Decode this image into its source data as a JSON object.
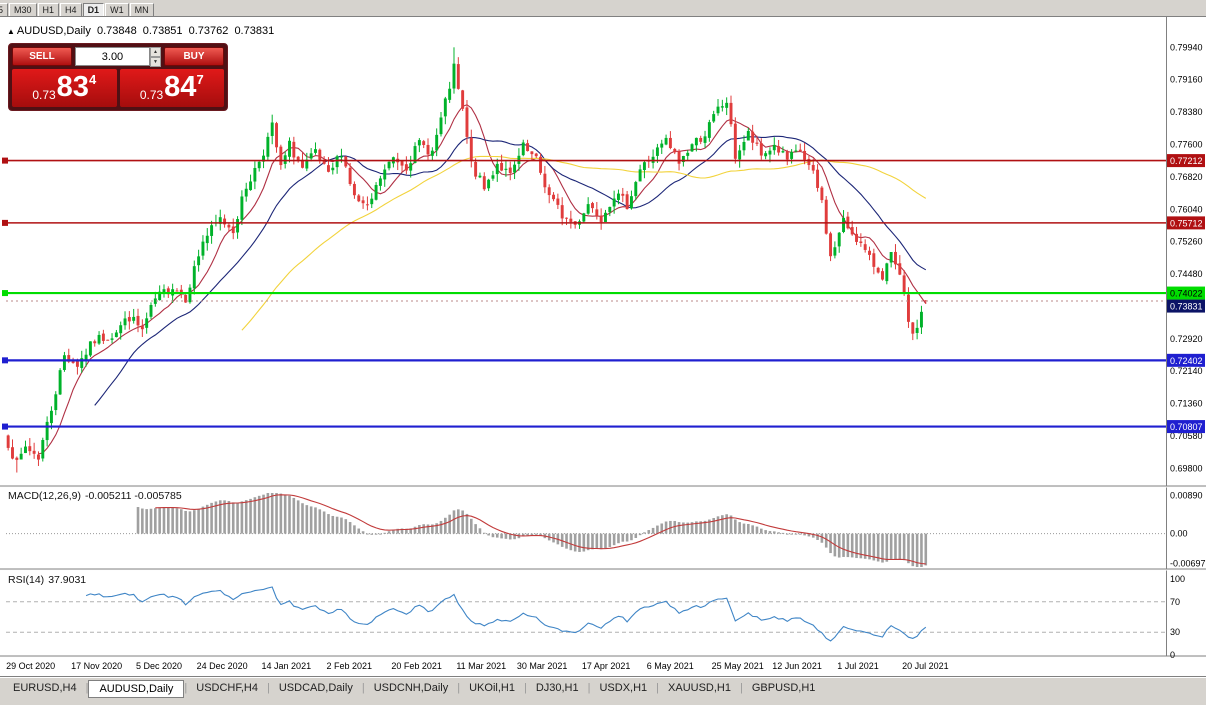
{
  "toolbar": {
    "timeframes": [
      "5",
      "M30",
      "H1",
      "H4",
      "D1",
      "W1",
      "MN"
    ],
    "active": "D1"
  },
  "chart_header": {
    "symbol": "AUDUSD,Daily",
    "open": "0.73848",
    "high": "0.73851",
    "low": "0.73762",
    "close": "0.73831"
  },
  "trade_panel": {
    "sell_label": "SELL",
    "buy_label": "BUY",
    "lot_size": "3.00",
    "sell_price_small": "0.73",
    "sell_price_big": "83",
    "sell_price_sup": "4",
    "buy_price_small": "0.73",
    "buy_price_big": "84",
    "buy_price_sup": "7"
  },
  "indicators": {
    "macd": {
      "label": "MACD(12,26,9)",
      "values": "-0.005211 -0.005785"
    },
    "rsi": {
      "label": "RSI(14)",
      "value": "37.9031"
    }
  },
  "tabs": {
    "items": [
      "EURUSD,H4",
      "AUDUSD,Daily",
      "USDCHF,H4",
      "USDCAD,Daily",
      "USDCNH,Daily",
      "UKOil,H1",
      "DJ30,H1",
      "USDX,H1",
      "XAUUSD,H1",
      "GBPUSD,H1"
    ],
    "active_index": 1
  },
  "chart_data": {
    "type": "candlestick",
    "symbol": "AUDUSD",
    "timeframe": "Daily",
    "bars": 213,
    "right_shift_slots": 55,
    "y_range": {
      "min": 0.694,
      "max": 0.8067
    },
    "y_tick_labels": [
      "0.79940",
      "0.79160",
      "0.78380",
      "0.77600",
      "0.76820",
      "0.76040",
      "0.75260",
      "0.74480",
      "0.73700",
      "0.72920",
      "0.72140",
      "0.71360",
      "0.70580",
      "0.69800"
    ],
    "date_labels": [
      "29 Oct 2020",
      "17 Nov 2020",
      "5 Dec 2020",
      "24 Dec 2020",
      "14 Jan 2021",
      "2 Feb 2021",
      "20 Feb 2021",
      "11 Mar 2021",
      "30 Mar 2021",
      "17 Apr 2021",
      "6 May 2021",
      "25 May 2021",
      "12 Jun 2021",
      "1 Jul 2021",
      "20 Jul 2021"
    ],
    "series_anchors": [
      [
        0,
        0.7042
      ],
      [
        2,
        0.6988
      ],
      [
        4,
        0.7032
      ],
      [
        7,
        0.7008
      ],
      [
        10,
        0.7125
      ],
      [
        13,
        0.7252
      ],
      [
        16,
        0.723
      ],
      [
        20,
        0.7288
      ],
      [
        24,
        0.7302
      ],
      [
        28,
        0.7345
      ],
      [
        31,
        0.7312
      ],
      [
        34,
        0.7386
      ],
      [
        38,
        0.742
      ],
      [
        41,
        0.7392
      ],
      [
        45,
        0.7528
      ],
      [
        49,
        0.758
      ],
      [
        52,
        0.7556
      ],
      [
        55,
        0.7658
      ],
      [
        57,
        0.77
      ],
      [
        59,
        0.7745
      ],
      [
        61,
        0.7802
      ],
      [
        63,
        0.7702
      ],
      [
        65,
        0.7758
      ],
      [
        68,
        0.77
      ],
      [
        71,
        0.774
      ],
      [
        74,
        0.7682
      ],
      [
        77,
        0.7744
      ],
      [
        80,
        0.7632
      ],
      [
        83,
        0.7602
      ],
      [
        86,
        0.768
      ],
      [
        89,
        0.7728
      ],
      [
        92,
        0.771
      ],
      [
        95,
        0.7762
      ],
      [
        98,
        0.7742
      ],
      [
        101,
        0.7858
      ],
      [
        103,
        0.7942
      ],
      [
        105,
        0.7838
      ],
      [
        107,
        0.7712
      ],
      [
        110,
        0.7652
      ],
      [
        113,
        0.7716
      ],
      [
        116,
        0.7682
      ],
      [
        119,
        0.7752
      ],
      [
        122,
        0.772
      ],
      [
        125,
        0.7636
      ],
      [
        128,
        0.759
      ],
      [
        131,
        0.7566
      ],
      [
        134,
        0.7618
      ],
      [
        137,
        0.7586
      ],
      [
        140,
        0.764
      ],
      [
        143,
        0.7616
      ],
      [
        146,
        0.77
      ],
      [
        149,
        0.7734
      ],
      [
        152,
        0.7768
      ],
      [
        155,
        0.7716
      ],
      [
        158,
        0.776
      ],
      [
        161,
        0.7786
      ],
      [
        164,
        0.7844
      ],
      [
        166,
        0.7864
      ],
      [
        168,
        0.7732
      ],
      [
        171,
        0.7784
      ],
      [
        174,
        0.7732
      ],
      [
        177,
        0.7758
      ],
      [
        180,
        0.7722
      ],
      [
        183,
        0.7744
      ],
      [
        186,
        0.7686
      ],
      [
        188,
        0.7622
      ],
      [
        190,
        0.7486
      ],
      [
        193,
        0.7574
      ],
      [
        196,
        0.7536
      ],
      [
        199,
        0.7482
      ],
      [
        202,
        0.7446
      ],
      [
        204,
        0.749
      ],
      [
        206,
        0.7438
      ],
      [
        208,
        0.734
      ],
      [
        209,
        0.7292
      ],
      [
        211,
        0.7356
      ],
      [
        212,
        0.73831
      ]
    ],
    "extremes": [
      {
        "bar": 2,
        "low": 0.697
      },
      {
        "bar": 103,
        "high": 0.7994
      },
      {
        "bar": 209,
        "low": 0.7289
      }
    ],
    "last_ohlc": {
      "open": 0.73848,
      "high": 0.73851,
      "low": 0.73762,
      "close": 0.73831
    },
    "up_color": "#00b22a",
    "down_color": "#e03c3c",
    "moving_averages": [
      {
        "period": 8,
        "color": "#b03044"
      },
      {
        "period": 21,
        "color": "#1c2677"
      },
      {
        "period": 55,
        "color": "#f2d33c"
      }
    ],
    "horizontal_lines": [
      {
        "price": 0.77212,
        "label": "0.77212",
        "color": "#b01012",
        "width": 1.6,
        "text_color": "#fff"
      },
      {
        "price": 0.75712,
        "label": "0.75712",
        "color": "#b01012",
        "width": 1.6,
        "text_color": "#fff"
      },
      {
        "price": 0.74022,
        "label": "0.74022",
        "color": "#00dd00",
        "width": 2.2,
        "text_color": "#000"
      },
      {
        "price": 0.72402,
        "label": "0.72402",
        "color": "#1f1fd0",
        "width": 2.2,
        "text_color": "#fff"
      },
      {
        "price": 0.70807,
        "label": "0.70807",
        "color": "#1f1fd0",
        "width": 2.2,
        "text_color": "#fff"
      }
    ],
    "bid_line": {
      "price": 0.73831,
      "label": "0.73831",
      "badge_color": "#0b1366"
    },
    "macd": {
      "fast": 12,
      "slow": 26,
      "signal": 9,
      "axis_ticks": [
        {
          "label": "0.00890",
          "value": 0.0089
        },
        {
          "label": "0.00",
          "value": 0
        },
        {
          "label": "-0.00697",
          "value": -0.00697
        }
      ],
      "range": {
        "min": -0.0078,
        "max": 0.0095
      },
      "hist_color": "#a0a0a0",
      "line_color": "#c23b3b"
    },
    "rsi": {
      "period": 14,
      "axis_ticks": [
        {
          "label": "100",
          "value": 100
        },
        {
          "label": "70",
          "value": 70
        },
        {
          "label": "30",
          "value": 30
        },
        {
          "label": "0",
          "value": 0
        }
      ],
      "levels": [
        70,
        30
      ],
      "line_color": "#3f85c6"
    }
  }
}
